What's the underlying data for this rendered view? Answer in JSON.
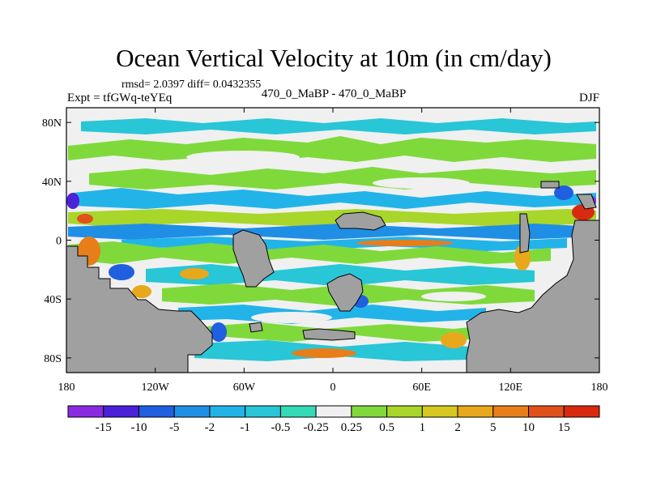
{
  "chart_data": {
    "type": "heatmap",
    "title": "Ocean Vertical Velocity at 10m (in cm/day)",
    "stats_line": "rmsd= 2.0397 diff= 0.0432355",
    "left_label": "Expt = tfGWq-teYEq",
    "center_label": "470_0_MaBP - 470_0_MaBP",
    "right_label": "DJF",
    "xlim": [
      180,
      540
    ],
    "ylim": [
      -90,
      90
    ],
    "x_ticks": [
      {
        "value": 180,
        "label": "180"
      },
      {
        "value": 240,
        "label": "120W"
      },
      {
        "value": 300,
        "label": "60W"
      },
      {
        "value": 360,
        "label": "0"
      },
      {
        "value": 420,
        "label": "60E"
      },
      {
        "value": 480,
        "label": "120E"
      },
      {
        "value": 540,
        "label": "180"
      }
    ],
    "y_ticks": [
      {
        "value": 80,
        "label": "80N"
      },
      {
        "value": 40,
        "label": "40N"
      },
      {
        "value": 0,
        "label": "0"
      },
      {
        "value": -40,
        "label": "40S"
      },
      {
        "value": -80,
        "label": "80S"
      }
    ],
    "colorbar": {
      "boundaries": [
        "-15",
        "-10",
        "-5",
        "-2",
        "-1",
        "-0.5",
        "-0.25",
        "0.25",
        "0.5",
        "1",
        "2",
        "5",
        "10",
        "15"
      ],
      "colors": [
        "#8a2be2",
        "#4b22d8",
        "#1f5fe0",
        "#1f8fe6",
        "#22b4e8",
        "#28c6d6",
        "#34d9b6",
        "#f0f0f0",
        "#7fd93a",
        "#a8d62a",
        "#d6c81e",
        "#e8a81c",
        "#e77e1a",
        "#e0521a",
        "#d92a10"
      ]
    },
    "land_color": "#a0a0a0"
  }
}
